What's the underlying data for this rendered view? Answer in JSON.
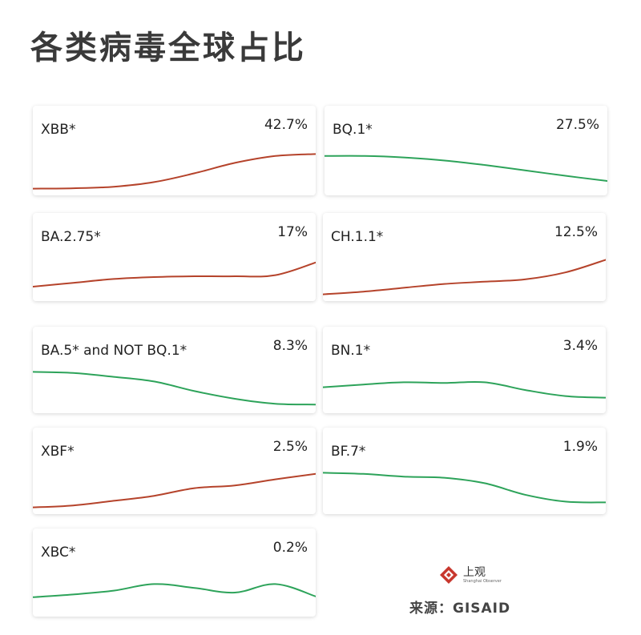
{
  "page": {
    "title": "各类病毒全球占比",
    "source": "来源：GISAID",
    "logo": {
      "cn": "上观",
      "en": "Shanghai Observer",
      "icon": "shanghai-observer-logo-icon",
      "color": "#c8372d"
    }
  },
  "colors": {
    "rising": "#b5432b",
    "falling": "#2da35a"
  },
  "chart_data": {
    "type": "line",
    "title": "各类病毒全球占比",
    "note": "small-multiples sparklines per variant; trend values are relative (0–1), no axes shown",
    "series": [
      {
        "name": "XBB*",
        "value_label": "42.7%",
        "trend": "rising",
        "values": [
          0.05,
          0.06,
          0.1,
          0.22,
          0.45,
          0.72,
          0.9,
          0.95
        ]
      },
      {
        "name": "BQ.1*",
        "value_label": "27.5%",
        "trend": "falling",
        "values": [
          0.9,
          0.9,
          0.86,
          0.78,
          0.66,
          0.52,
          0.38,
          0.25
        ]
      },
      {
        "name": "BA.2.75*",
        "value_label": "17%",
        "trend": "rising",
        "values": [
          0.25,
          0.35,
          0.45,
          0.5,
          0.52,
          0.52,
          0.55,
          0.88
        ]
      },
      {
        "name": "CH.1.1*",
        "value_label": "12.5%",
        "trend": "rising",
        "values": [
          0.05,
          0.12,
          0.22,
          0.32,
          0.38,
          0.44,
          0.62,
          0.95
        ]
      },
      {
        "name": "BA.5* and NOT BQ.1*",
        "value_label": "8.3%",
        "trend": "falling",
        "values": [
          0.95,
          0.92,
          0.82,
          0.7,
          0.45,
          0.25,
          0.12,
          0.1
        ]
      },
      {
        "name": "BN.1*",
        "value_label": "3.4%",
        "trend": "falling",
        "values": [
          0.55,
          0.62,
          0.68,
          0.66,
          0.68,
          0.48,
          0.32,
          0.28
        ]
      },
      {
        "name": "XBF*",
        "value_label": "2.5%",
        "trend": "rising",
        "values": [
          0.05,
          0.1,
          0.22,
          0.35,
          0.55,
          0.62,
          0.78,
          0.92
        ]
      },
      {
        "name": "BF.7*",
        "value_label": "1.9%",
        "trend": "falling",
        "values": [
          0.95,
          0.92,
          0.85,
          0.82,
          0.68,
          0.38,
          0.2,
          0.18
        ]
      },
      {
        "name": "XBC*",
        "value_label": "0.2%",
        "trend": "falling",
        "values": [
          0.38,
          0.45,
          0.55,
          0.72,
          0.62,
          0.5,
          0.72,
          0.4
        ]
      }
    ]
  }
}
